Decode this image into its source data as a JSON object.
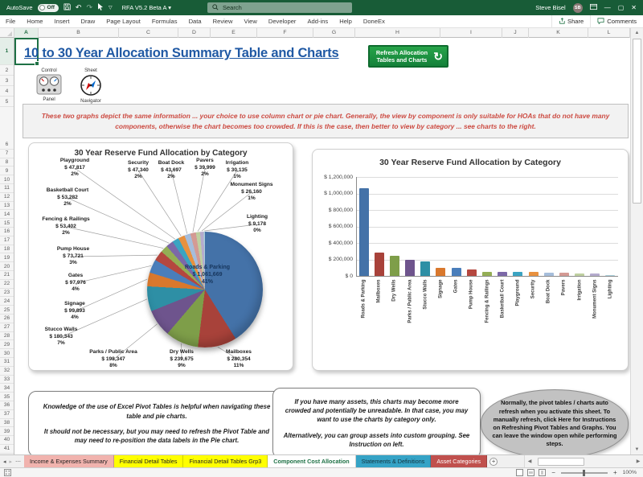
{
  "titlebar": {
    "autosave_label": "AutoSave",
    "autosave_state": "Off",
    "doc_title": "RFA V5.2 Beta A",
    "search_placeholder": "Search",
    "user_name": "Steve Bisel",
    "user_initials": "SB"
  },
  "ribbon": {
    "tabs": [
      "File",
      "Home",
      "Insert",
      "Draw",
      "Page Layout",
      "Formulas",
      "Data",
      "Review",
      "View",
      "Developer",
      "Add-ins",
      "Help",
      "DoneEx"
    ],
    "share_label": "Share",
    "comments_label": "Comments"
  },
  "sheet": {
    "columns": [
      "A",
      "B",
      "C",
      "D",
      "E",
      "F",
      "G",
      "H",
      "I",
      "J",
      "K",
      "L"
    ],
    "rows": [
      1,
      2,
      3,
      4,
      5,
      6,
      7,
      8,
      9,
      10,
      11,
      12,
      13,
      14,
      15,
      16,
      17,
      18,
      19,
      20,
      21,
      22,
      23,
      24,
      25,
      26,
      27,
      28,
      29,
      30,
      31,
      32,
      33,
      34,
      35,
      36,
      37,
      38,
      39,
      40,
      41
    ]
  },
  "page": {
    "title": "10 to 30 Year Allocation Summary Table and Charts",
    "refresh_button": "Refresh Allocation Tables and Charts",
    "control_panel_top": "Control",
    "control_panel_bottom": "Panel",
    "navigator_top": "Sheet",
    "navigator_bottom": "Navigator",
    "notice": "These two graphs depict the same information ... your choice to use column chart or pie chart.  Generally, the view by component is only suitable for HOAs that do not have many components, otherwise the chart becomes too crowded.  If this is the case, then better to view by category ... see charts to the right."
  },
  "chart_data": [
    {
      "type": "pie",
      "title": "30 Year Reserve Fund Allocation by Category",
      "categories": [
        "Roads & Parking",
        "Mailboxes",
        "Dry Wells",
        "Parks / Public Area",
        "Stucco Walls",
        "Signage",
        "Gates",
        "Pump House",
        "Fencing & Railings",
        "Basketball Court",
        "Playground",
        "Security",
        "Boat Dock",
        "Pavers",
        "Irrigation",
        "Monument Signs",
        "Lighting"
      ],
      "values": [
        1061669,
        280354,
        239675,
        198347,
        180343,
        99893,
        97976,
        73721,
        53402,
        53282,
        47817,
        47340,
        43697,
        39999,
        30135,
        26160,
        9178
      ],
      "value_labels": [
        "$ 1,061,669",
        "$ 280,354",
        "$ 239,675",
        "$ 198,347",
        "$ 180,343",
        "$ 99,893",
        "$ 97,976",
        "$ 73,721",
        "$ 53,402",
        "$ 53,282",
        "$ 47,817",
        "$ 47,340",
        "$ 43,697",
        "$ 39,999",
        "$ 30,135",
        "$ 26,160",
        "$ 9,178"
      ],
      "percent_labels": [
        "41%",
        "11%",
        "9%",
        "8%",
        "7%",
        "4%",
        "4%",
        "3%",
        "2%",
        "2%",
        "2%",
        "2%",
        "2%",
        "2%",
        "1%",
        "1%",
        "0%"
      ],
      "colors": [
        "#4472A8",
        "#A8423A",
        "#7E9E49",
        "#6E548D",
        "#2E8FA5",
        "#D9782D",
        "#4A7EBB",
        "#B5473F",
        "#94AE55",
        "#7C68A8",
        "#3BA4C2",
        "#E8913F",
        "#A6BDDB",
        "#D49A94",
        "#BFD0A0",
        "#B5ABCE",
        "#A9CFDA"
      ],
      "legend": "none"
    },
    {
      "type": "bar",
      "title": "30 Year Reserve Fund Allocation by Category",
      "categories": [
        "Roads & Parking",
        "Mailboxes",
        "Dry Wells",
        "Parks / Public Area",
        "Stucco Walls",
        "Signage",
        "Gates",
        "Pump House",
        "Fencing & Railings",
        "Basketball Court",
        "Playground",
        "Security",
        "Boat Dock",
        "Pavers",
        "Irrigation",
        "Monument Signs",
        "Lighting"
      ],
      "values": [
        1061669,
        280354,
        239675,
        198347,
        180343,
        99893,
        97976,
        73721,
        53402,
        53282,
        47817,
        47340,
        43697,
        39999,
        30135,
        26160,
        9178
      ],
      "colors": [
        "#4472A8",
        "#A8423A",
        "#7E9E49",
        "#6E548D",
        "#2E8FA5",
        "#D9782D",
        "#4A7EBB",
        "#B5473F",
        "#94AE55",
        "#7C68A8",
        "#3BA4C2",
        "#E8913F",
        "#A6BDDB",
        "#D49A94",
        "#BFD0A0",
        "#B5ABCE",
        "#A9CFDA"
      ],
      "yticks": [
        "$ 0",
        "$ 200,000",
        "$ 400,000",
        "$ 600,000",
        "$ 800,000",
        "$ 1,000,000",
        "$ 1,200,000"
      ],
      "ylim": [
        0,
        1200000
      ],
      "grid": "horizontal",
      "legend": "none"
    }
  ],
  "notes": {
    "left": {
      "p1": "Knowledge of the use of Excel Pivot Tables is helpful when navigating these table and pie charts.",
      "p2": "It should not be necessary, but you may need to refresh the Pivot Table and may need to re-position the data labels in the Pie chart."
    },
    "middle": {
      "p1": "If you have many assets, this charts may become more crowded and potentially be unreadable.  In that case, you may want  to use the charts by category only.",
      "p2": "Alternatively, you can group assets into custom grouping.  See Instruction on left."
    },
    "right": "Normally, the pivot tables / charts auto refresh when you activate this sheet.  To manually refresh, click Here for Instructions on Refreshing Pivot Tables and Graphs.  You can leave the window open while performing steps."
  },
  "sheet_tabs": {
    "items": [
      {
        "label": "Income & Expenses Summary",
        "bg": "#F1B3AE",
        "fg": "#222222",
        "active": false
      },
      {
        "label": "Financial Detail Tables",
        "bg": "#FFFF00",
        "fg": "#222222",
        "active": false
      },
      {
        "label": "Financial Detail Tables Grp3",
        "bg": "#FFFF00",
        "fg": "#222222",
        "active": false
      },
      {
        "label": "Component Cost Allocation",
        "bg": "#FFFFFF",
        "fg": "#1E7145",
        "active": true
      },
      {
        "label": "Statements & Definitions",
        "bg": "#35A3C6",
        "fg": "#14333E",
        "active": false
      },
      {
        "label": "Asset Categories",
        "bg": "#C0504D",
        "fg": "#FFFFFF",
        "active": false
      }
    ]
  },
  "statusbar": {
    "zoom_level": "100%",
    "zoom_out": "−",
    "zoom_in": "+"
  }
}
